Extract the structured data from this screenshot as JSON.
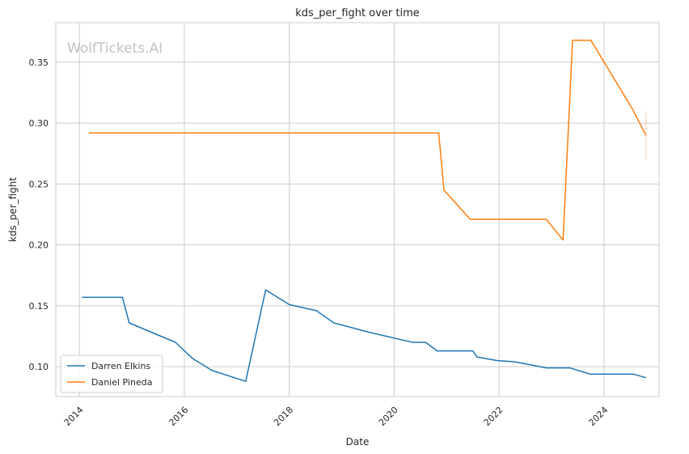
{
  "chart_data": {
    "type": "line",
    "title": "kds_per_fight over time",
    "xlabel": "Date",
    "ylabel": "kds_per_fight",
    "watermark": "WolfTickets.AI",
    "xlim": [
      2013.55,
      2025.05
    ],
    "ylim": [
      0.0755,
      0.3825
    ],
    "x_ticks": [
      2014,
      2016,
      2018,
      2020,
      2022,
      2024
    ],
    "x_tick_labels": [
      "2014",
      "2016",
      "2018",
      "2020",
      "2022",
      "2024"
    ],
    "y_ticks": [
      0.1,
      0.15,
      0.2,
      0.25,
      0.3,
      0.35
    ],
    "y_tick_labels": [
      "0.10",
      "0.15",
      "0.20",
      "0.25",
      "0.30",
      "0.35"
    ],
    "grid": true,
    "legend_position": "lower-left",
    "series": [
      {
        "name": "Darren Elkins",
        "color": "#1f77b4",
        "x": [
          2014.05,
          2014.82,
          2014.95,
          2015.83,
          2016.15,
          2016.52,
          2017.17,
          2017.55,
          2018.0,
          2018.52,
          2018.85,
          2019.55,
          2020.35,
          2020.6,
          2020.82,
          2021.5,
          2021.58,
          2021.97,
          2022.3,
          2022.9,
          2023.35,
          2023.73,
          2024.55,
          2024.8
        ],
        "values": [
          0.157,
          0.157,
          0.136,
          0.12,
          0.107,
          0.097,
          0.088,
          0.163,
          0.151,
          0.146,
          0.136,
          0.128,
          0.12,
          0.12,
          0.113,
          0.113,
          0.108,
          0.105,
          0.104,
          0.099,
          0.099,
          0.094,
          0.094,
          0.091
        ]
      },
      {
        "name": "Daniel Pineda",
        "color": "#ff7f0e",
        "x": [
          2014.18,
          2020.85,
          2020.95,
          2021.45,
          2022.9,
          2023.22,
          2023.4,
          2023.75,
          2024.55,
          2024.8
        ],
        "values": [
          0.292,
          0.292,
          0.245,
          0.221,
          0.221,
          0.204,
          0.368,
          0.368,
          0.311,
          0.29
        ],
        "error_band": {
          "x": 2024.8,
          "low": 0.27,
          "high": 0.31
        }
      }
    ]
  }
}
